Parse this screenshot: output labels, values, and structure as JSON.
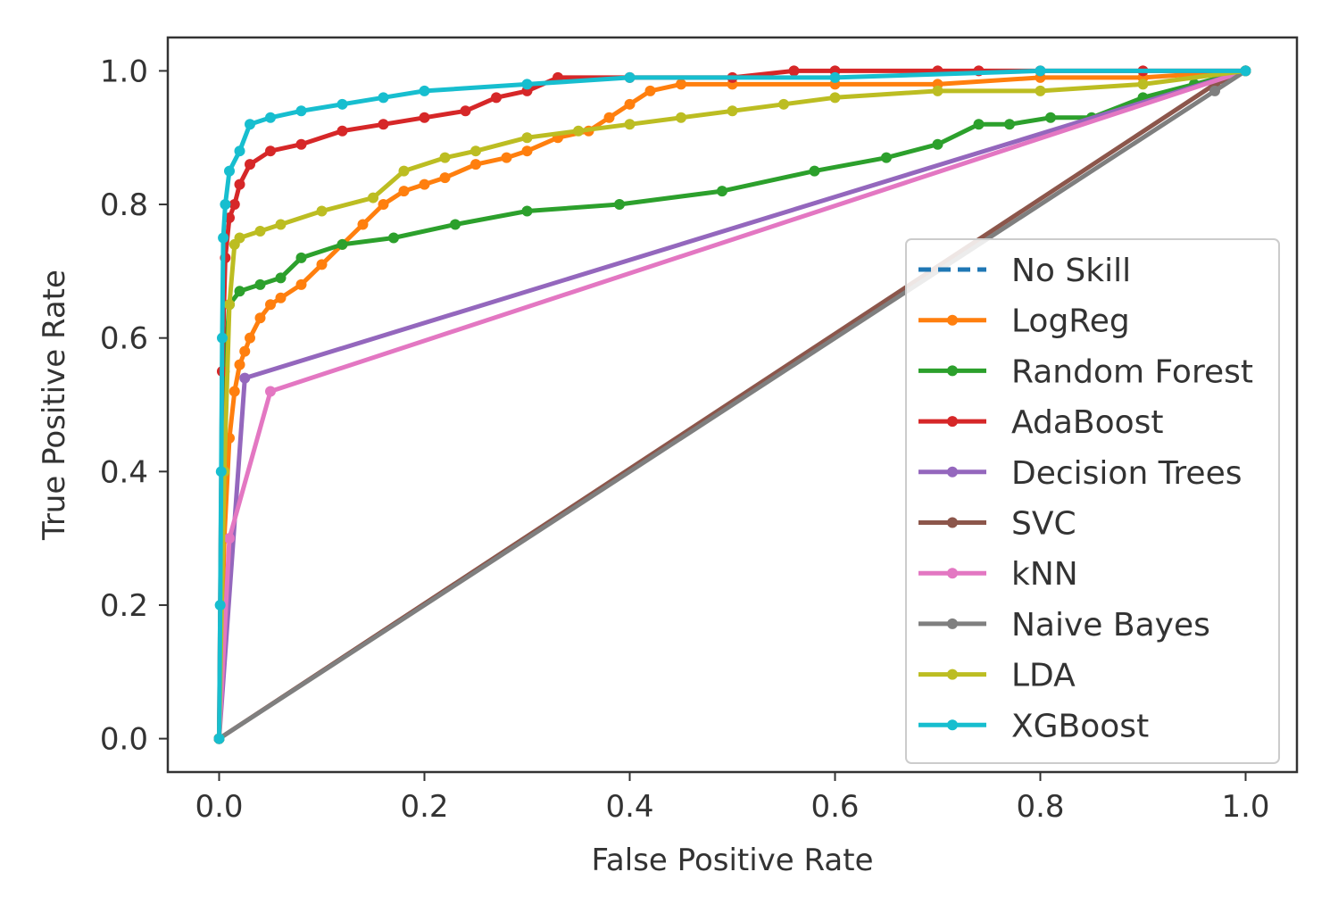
{
  "chart_data": {
    "type": "line",
    "title": "",
    "xlabel": "False Positive Rate",
    "ylabel": "True Positive Rate",
    "xlim": [
      -0.05,
      1.05
    ],
    "ylim": [
      -0.05,
      1.05
    ],
    "xticks": [
      "0.0",
      "0.2",
      "0.4",
      "0.6",
      "0.8",
      "1.0"
    ],
    "yticks": [
      "0.0",
      "0.2",
      "0.4",
      "0.6",
      "0.8",
      "1.0"
    ],
    "grid": false,
    "legend_position": "center-right",
    "series": [
      {
        "name": "No Skill",
        "color": "#1f77b4",
        "dashed": true,
        "markers": false,
        "x": [
          0,
          1
        ],
        "y": [
          0,
          1
        ]
      },
      {
        "name": "LogReg",
        "color": "#ff7f0e",
        "dashed": false,
        "markers": true,
        "x": [
          0,
          0.005,
          0.01,
          0.015,
          0.02,
          0.025,
          0.03,
          0.04,
          0.05,
          0.06,
          0.08,
          0.1,
          0.12,
          0.14,
          0.16,
          0.18,
          0.2,
          0.22,
          0.25,
          0.28,
          0.3,
          0.33,
          0.36,
          0.38,
          0.4,
          0.42,
          0.45,
          0.5,
          0.6,
          0.7,
          0.8,
          0.9,
          1.0
        ],
        "y": [
          0,
          0.3,
          0.45,
          0.52,
          0.56,
          0.58,
          0.6,
          0.63,
          0.65,
          0.66,
          0.68,
          0.71,
          0.74,
          0.77,
          0.8,
          0.82,
          0.83,
          0.84,
          0.86,
          0.87,
          0.88,
          0.9,
          0.91,
          0.93,
          0.95,
          0.97,
          0.98,
          0.98,
          0.98,
          0.98,
          0.99,
          0.99,
          1.0
        ]
      },
      {
        "name": "Random Forest",
        "color": "#2ca02c",
        "dashed": false,
        "markers": true,
        "x": [
          0,
          0.005,
          0.01,
          0.02,
          0.04,
          0.06,
          0.08,
          0.12,
          0.17,
          0.23,
          0.3,
          0.39,
          0.49,
          0.58,
          0.65,
          0.7,
          0.74,
          0.77,
          0.81,
          0.85,
          0.9,
          0.95,
          1.0
        ],
        "y": [
          0,
          0.55,
          0.65,
          0.67,
          0.68,
          0.69,
          0.72,
          0.74,
          0.75,
          0.77,
          0.79,
          0.8,
          0.82,
          0.85,
          0.87,
          0.89,
          0.92,
          0.92,
          0.93,
          0.93,
          0.96,
          0.98,
          1.0
        ]
      },
      {
        "name": "AdaBoost",
        "color": "#d62728",
        "dashed": false,
        "markers": true,
        "x": [
          0,
          0.003,
          0.006,
          0.01,
          0.015,
          0.02,
          0.03,
          0.05,
          0.08,
          0.12,
          0.16,
          0.2,
          0.24,
          0.27,
          0.3,
          0.33,
          0.4,
          0.5,
          0.56,
          0.6,
          0.7,
          0.74,
          0.8,
          0.9,
          1.0
        ],
        "y": [
          0,
          0.55,
          0.72,
          0.78,
          0.8,
          0.83,
          0.86,
          0.88,
          0.89,
          0.91,
          0.92,
          0.93,
          0.94,
          0.96,
          0.97,
          0.99,
          0.99,
          0.99,
          1.0,
          1.0,
          1.0,
          1.0,
          1.0,
          1.0,
          1.0
        ]
      },
      {
        "name": "Decision Trees",
        "color": "#9467bd",
        "dashed": false,
        "markers": true,
        "x": [
          0,
          0.025,
          1.0
        ],
        "y": [
          0,
          0.54,
          1.0
        ]
      },
      {
        "name": "SVC",
        "color": "#8c564b",
        "dashed": false,
        "markers": true,
        "x": [
          0,
          0.97,
          1.0
        ],
        "y": [
          0,
          0.98,
          1.0
        ]
      },
      {
        "name": "kNN",
        "color": "#e377c2",
        "dashed": false,
        "markers": true,
        "x": [
          0,
          0.01,
          0.05,
          1.0
        ],
        "y": [
          0,
          0.3,
          0.52,
          1.0
        ]
      },
      {
        "name": "Naive Bayes",
        "color": "#7f7f7f",
        "dashed": false,
        "markers": true,
        "x": [
          0,
          0.97,
          1.0
        ],
        "y": [
          0,
          0.97,
          1.0
        ]
      },
      {
        "name": "LDA",
        "color": "#bcbd22",
        "dashed": false,
        "markers": true,
        "x": [
          0,
          0.005,
          0.01,
          0.015,
          0.02,
          0.04,
          0.06,
          0.1,
          0.15,
          0.18,
          0.22,
          0.25,
          0.3,
          0.35,
          0.4,
          0.45,
          0.5,
          0.55,
          0.6,
          0.7,
          0.8,
          0.9,
          1.0
        ],
        "y": [
          0,
          0.4,
          0.65,
          0.74,
          0.75,
          0.76,
          0.77,
          0.79,
          0.81,
          0.85,
          0.87,
          0.88,
          0.9,
          0.91,
          0.92,
          0.93,
          0.94,
          0.95,
          0.96,
          0.97,
          0.97,
          0.98,
          1.0
        ]
      },
      {
        "name": "XGBoost",
        "color": "#17becf",
        "dashed": false,
        "markers": true,
        "x": [
          0,
          0.001,
          0.002,
          0.003,
          0.004,
          0.006,
          0.01,
          0.02,
          0.03,
          0.05,
          0.08,
          0.12,
          0.16,
          0.2,
          0.3,
          0.4,
          0.6,
          0.8,
          1.0
        ],
        "y": [
          0,
          0.2,
          0.4,
          0.6,
          0.75,
          0.8,
          0.85,
          0.88,
          0.92,
          0.93,
          0.94,
          0.95,
          0.96,
          0.97,
          0.98,
          0.99,
          0.99,
          1.0,
          1.0
        ]
      }
    ]
  }
}
